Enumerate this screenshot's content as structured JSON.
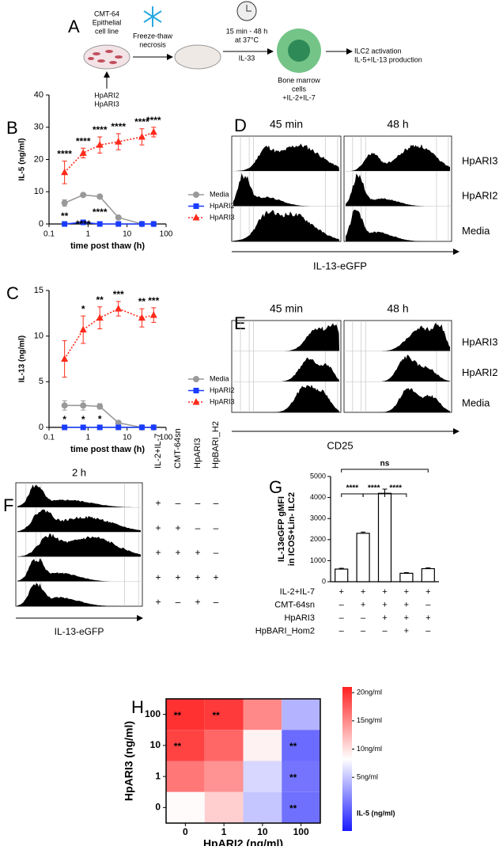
{
  "panel_letters": [
    "A",
    "B",
    "C",
    "D",
    "E",
    "F",
    "G",
    "H"
  ],
  "diagram": {
    "cell_line": [
      "CMT-64",
      "Epithelial",
      "cell line"
    ],
    "treatment": [
      "HpARI2",
      "HpARI3"
    ],
    "freeze": [
      "Freeze-thaw",
      "necrosis"
    ],
    "incubation": [
      "15 min - 48 h",
      "at 37°C"
    ],
    "stimulus": "IL-33",
    "cells": [
      "Bone marrow",
      "cells",
      "+IL-2+IL-7"
    ],
    "readout": [
      "ILC2 activation",
      "IL-5+IL-13 production"
    ]
  },
  "flow_panels": [
    {
      "timepoints": [
        "45 min",
        "48 h"
      ],
      "rows": [
        "HpARI3",
        "HpARI2",
        "Media"
      ],
      "axis_label": "IL-13-eGFP"
    },
    {
      "timepoints": [
        "45 min",
        "48 h"
      ],
      "rows": [
        "HpARI3",
        "HpARI2",
        "Media"
      ],
      "axis_label": "CD25"
    },
    {
      "timepoint": "2 h",
      "columns": [
        "IL-2+IL-7",
        "CMT-64sn",
        "HpARI3",
        "HpBARI_H2"
      ],
      "signs": [
        [
          "+",
          "–",
          "–",
          "–"
        ],
        [
          "+",
          "+",
          "–",
          "–"
        ],
        [
          "+",
          "+",
          "+",
          "–"
        ],
        [
          "+",
          "+",
          "+",
          "+"
        ],
        [
          "+",
          "–",
          "+",
          "–"
        ]
      ],
      "axis_label": "IL-13-eGFP"
    }
  ],
  "chart_data": [
    {
      "type": "line",
      "xlabel": "time post thaw (h)",
      "ylabel": "IL-5 (ng/ml)",
      "x": [
        0.25,
        0.75,
        2,
        6,
        24,
        48
      ],
      "xscale": "log",
      "xlim": [
        0.1,
        100
      ],
      "xticks": [
        0.1,
        1,
        10,
        100
      ],
      "ylim": [
        0,
        40
      ],
      "yticks": [
        0,
        10,
        20,
        30,
        40
      ],
      "series": [
        {
          "name": "Media",
          "color": "#999999",
          "marker": "circle",
          "linestyle": "solid",
          "values": [
            6.5,
            9,
            8.5,
            2,
            0,
            0
          ],
          "errors": [
            1,
            0.5,
            0.5,
            0.3,
            0,
            0
          ]
        },
        {
          "name": "HpARI2",
          "color": "#1a3cff",
          "marker": "square",
          "linestyle": "solid",
          "values": [
            0,
            0.5,
            0,
            0,
            0,
            0
          ],
          "errors": [
            0,
            0,
            0,
            0,
            0,
            0
          ]
        },
        {
          "name": "HpARI3",
          "color": "#ff2a1a",
          "marker": "triangle",
          "linestyle": "dotted",
          "values": [
            16,
            22,
            24.5,
            25.5,
            27,
            28.5
          ],
          "errors": [
            3.5,
            1.5,
            2.5,
            2.5,
            2.5,
            1.5
          ]
        }
      ],
      "significance_above": [
        "****",
        "****",
        "****",
        "****",
        "****",
        "****"
      ],
      "significance_below": [
        "**",
        "****",
        "****",
        null,
        null,
        null
      ]
    },
    {
      "type": "line",
      "xlabel": "time post thaw (h)",
      "ylabel": "IL-13 (ng/ml)",
      "x": [
        0.25,
        0.75,
        2,
        6,
        24,
        48
      ],
      "xscale": "log",
      "xlim": [
        0.1,
        100
      ],
      "xticks": [
        0.1,
        1,
        10,
        100
      ],
      "ylim": [
        0,
        15
      ],
      "yticks": [
        0,
        5,
        10,
        15
      ],
      "series": [
        {
          "name": "Media",
          "color": "#999999",
          "marker": "circle",
          "linestyle": "solid",
          "values": [
            2.4,
            2.4,
            2.3,
            0.5,
            0,
            0
          ],
          "errors": [
            0.5,
            0.5,
            0.3,
            0.2,
            0,
            0
          ]
        },
        {
          "name": "HpARI2",
          "color": "#1a3cff",
          "marker": "square",
          "linestyle": "solid",
          "values": [
            0,
            0,
            0,
            0,
            0,
            0
          ],
          "errors": [
            0,
            0,
            0,
            0,
            0,
            0
          ]
        },
        {
          "name": "HpARI3",
          "color": "#ff2a1a",
          "marker": "triangle",
          "linestyle": "dotted",
          "values": [
            7.5,
            10.7,
            12,
            13,
            12,
            12.3
          ],
          "errors": [
            2,
            1.5,
            1.2,
            0.8,
            1,
            0.8
          ]
        }
      ],
      "significance_above": [
        null,
        "*",
        "**",
        "***",
        "**",
        "***"
      ],
      "significance_below": [
        "*",
        "*",
        "*",
        null,
        null,
        null
      ]
    },
    {
      "type": "bar",
      "ylabel": [
        "IL-13eGFP gMFI",
        "in ICOS+Lin- ILC2"
      ],
      "values": [
        600,
        2300,
        4200,
        400,
        620
      ],
      "errors": [
        40,
        60,
        200,
        30,
        40
      ],
      "color": "#ffffff",
      "ylim": [
        0,
        5000
      ],
      "yticks": [
        0,
        1000,
        2000,
        3000,
        4000,
        5000
      ],
      "conditions": [
        {
          "name": "IL-2+IL-7",
          "signs": [
            "+",
            "+",
            "+",
            "+",
            "+"
          ]
        },
        {
          "name": "CMT-64sn",
          "signs": [
            "–",
            "+",
            "+",
            "+",
            "–"
          ]
        },
        {
          "name": "HpARI3",
          "signs": [
            "–",
            "–",
            "+",
            "+",
            "+"
          ]
        },
        {
          "name": "HpBARI_Hom2",
          "signs": [
            "–",
            "–",
            "–",
            "+",
            "–"
          ]
        }
      ],
      "comparisons": [
        "****",
        "****",
        "****",
        "ns"
      ]
    },
    {
      "type": "heatmap",
      "xlabel": "HpARI2 (ng/ml)",
      "ylabel": "HpARI3 (ng/ml)",
      "categories": [
        "0",
        "1",
        "10",
        "100"
      ],
      "rows": [
        "100",
        "10",
        "1",
        "0"
      ],
      "values": [
        [
          20,
          19.5,
          15,
          4
        ],
        [
          19,
          17,
          9,
          0
        ],
        [
          16,
          14.5,
          6,
          0.5
        ],
        [
          8.5,
          11,
          5,
          0.3
        ]
      ],
      "stars": [
        [
          "**",
          "**",
          null,
          null
        ],
        [
          "**",
          null,
          null,
          "**"
        ],
        [
          null,
          null,
          null,
          "**"
        ],
        [
          null,
          null,
          null,
          "**"
        ]
      ],
      "colors": [
        "#1a1aff",
        "#ffffff",
        "#ff2020"
      ],
      "colorbar": {
        "label": "IL-5 (ng/ml)",
        "lim": [
          -4.5,
          21
        ],
        "ticks": [
          {
            "value": 5,
            "label": "5ng/ml"
          },
          {
            "value": 10,
            "label": "10ng/ml"
          },
          {
            "value": 15,
            "label": "15ng/ml"
          },
          {
            "value": 20,
            "label": "20ng/ml"
          }
        ]
      }
    }
  ]
}
